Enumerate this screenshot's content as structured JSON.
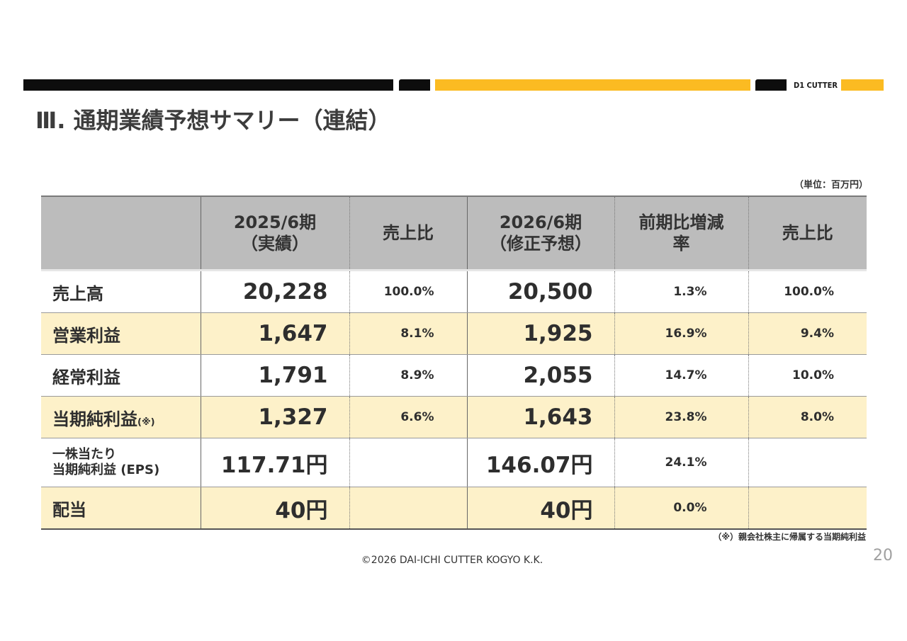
{
  "brand": "D1 CUTTER",
  "title": "Ⅲ. 通期業績予想サマリー（連結）",
  "unit_note": "（単位：百万円）",
  "headers": {
    "col1_line1": "2025/6期",
    "col1_line2": "（実績）",
    "col2": "売上比",
    "col3_line1": "2026/6期",
    "col3_line2": "（修正予想）",
    "col4_line1": "前期比増減",
    "col4_line2": "率",
    "col5": "売上比"
  },
  "rows": [
    {
      "label": "売上高",
      "fy2025": "20,228",
      "ratio2025": "100.0%",
      "fy2026": "20,500",
      "yoy": "1.3%",
      "ratio2026": "100.0%"
    },
    {
      "label": "営業利益",
      "fy2025": "1,647",
      "ratio2025": "8.1%",
      "fy2026": "1,925",
      "yoy": "16.9%",
      "ratio2026": "9.4%"
    },
    {
      "label": "経常利益",
      "fy2025": "1,791",
      "ratio2025": "8.9%",
      "fy2026": "2,055",
      "yoy": "14.7%",
      "ratio2026": "10.0%"
    },
    {
      "label": "当期純利益",
      "label_note": "(※)",
      "fy2025": "1,327",
      "ratio2025": "6.6%",
      "fy2026": "1,643",
      "yoy": "23.8%",
      "ratio2026": "8.0%"
    },
    {
      "label_line1": "一株当たり",
      "label_line2": "当期純利益 (EPS)",
      "fy2025": "117.71円",
      "ratio2025": "",
      "fy2026": "146.07円",
      "yoy": "24.1%",
      "ratio2026": ""
    },
    {
      "label": "配当",
      "fy2025": "40円",
      "ratio2025": "",
      "fy2026": "40円",
      "yoy": "0.0%",
      "ratio2026": ""
    }
  ],
  "footnote": "（※）親会社株主に帰属する当期純利益",
  "copyright": "©2026 DAI-ICHI CUTTER KOGYO K.K.",
  "page_number": "20",
  "colors": {
    "accent_yellow": "#fbbb22",
    "row_highlight": "#fdf1c9",
    "header_gray": "#bcbcbc"
  }
}
